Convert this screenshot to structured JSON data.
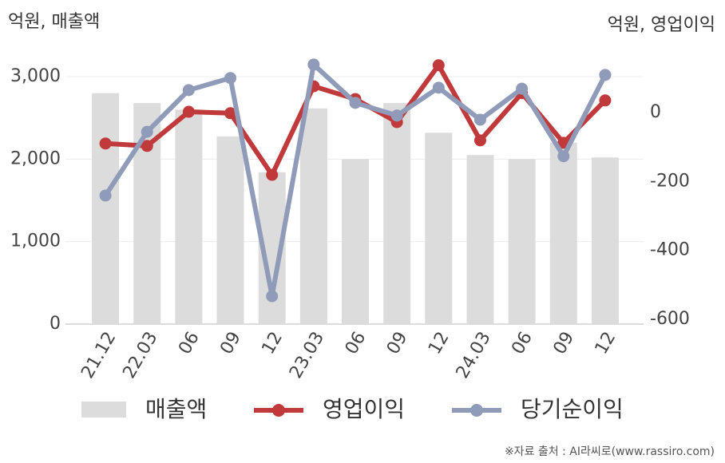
{
  "chart_data": {
    "type": "bar-line",
    "left_unit": "억원, 매출액",
    "right_unit": "억원, 영업이익",
    "source": "※자료 출처 : AI라씨로(www.rassiro.com)",
    "categories": [
      "21.12",
      "22.03",
      "06",
      "09",
      "12",
      "23.03",
      "06",
      "09",
      "12",
      "24.03",
      "06",
      "09",
      "12"
    ],
    "series": [
      {
        "name": "매출액",
        "type": "bar",
        "color": "#dcdcdc",
        "values": [
          2800,
          2680,
          2600,
          2275,
          1840,
          2615,
          2000,
          2680,
          2320,
          2050,
          2000,
          2200,
          2020
        ]
      },
      {
        "name": "영업이익",
        "type": "line",
        "axis": "y2",
        "color": "#c0393b",
        "values": [
          -90,
          -97,
          2,
          -2,
          -181,
          76,
          39,
          -28,
          137,
          -81,
          56,
          -88,
          35
        ]
      },
      {
        "name": "당기순이익",
        "type": "line",
        "axis": "y2",
        "color": "#8f9bb8",
        "values": [
          -241,
          -56,
          65,
          100,
          -533,
          139,
          28,
          -9,
          72,
          -21,
          69,
          -127,
          109
        ]
      }
    ],
    "ylim": [
      0,
      3000
    ],
    "yticks": [
      0,
      {
        "value": 1000,
        "label": "1,000"
      },
      {
        "value": 2000,
        "label": "2,000"
      },
      {
        "value": 3000,
        "label": "3,000"
      }
    ],
    "y2lim": [
      -614,
      104
    ],
    "y2ticks": [
      0,
      -200,
      -400,
      -600
    ],
    "grid": true
  }
}
